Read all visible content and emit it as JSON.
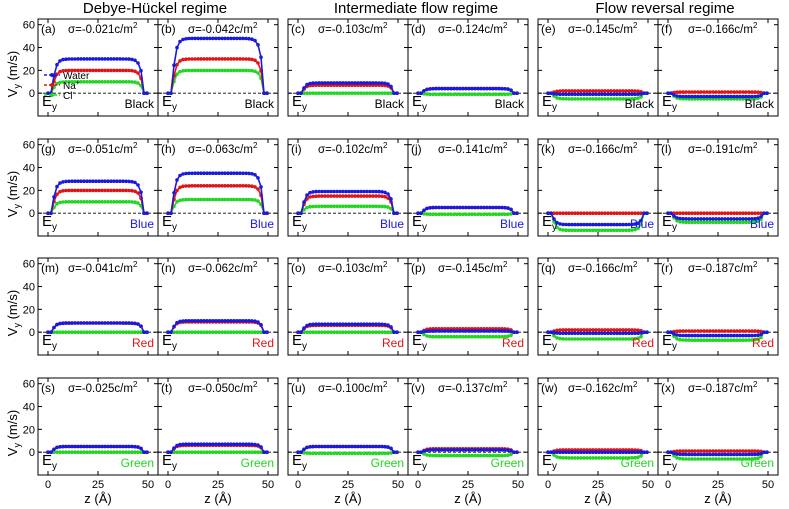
{
  "figure": {
    "regimes": [
      "Debye-Hückel regime",
      "Intermediate flow regime",
      "Flow reversal regime"
    ],
    "ylabel_main": "V",
    "ylabel_sub": "y",
    "ylabel_unit": " (m/s)",
    "xlabel_main": "z",
    "xlabel_unit": "(Å)",
    "field_main": "E",
    "field_sub": "y",
    "legend": [
      "Water",
      "Na",
      "Cl",
      "+",
      "-"
    ]
  },
  "chart_data": {
    "type": "line",
    "xlim": [
      -5,
      55
    ],
    "ylim": [
      -20,
      65
    ],
    "xticks": [
      0,
      25,
      50
    ],
    "yticks": [
      0,
      20,
      40,
      60
    ],
    "grid": false,
    "legend_position": "panel-a-lower-left",
    "series_colors": {
      "Water": "#1a1adc",
      "Na+": "#e01515",
      "Cl-": "#22d622"
    },
    "rows": [
      {
        "color_label": "Black",
        "color_hex": "#000000",
        "panels": [
          {
            "label": "(a)",
            "sigma": "σ=-0.021c/m²",
            "plateaus": {
              "water": 30,
              "na": 20,
              "cl": 10
            }
          },
          {
            "label": "(b)",
            "sigma": "σ=-0.042c/m²",
            "plateaus": {
              "water": 48,
              "na": 30,
              "cl": 20
            }
          },
          {
            "label": "(c)",
            "sigma": "σ=-0.103c/m²",
            "plateaus": {
              "water": 9,
              "na": 7,
              "cl": 0
            }
          },
          {
            "label": "(d)",
            "sigma": "σ=-0.124c/m²",
            "plateaus": {
              "water": 4,
              "na": 4,
              "cl": -1
            }
          },
          {
            "label": "(e)",
            "sigma": "σ=-0.145c/m²",
            "plateaus": {
              "water": -1,
              "na": 2,
              "cl": -5
            }
          },
          {
            "label": "(f)",
            "sigma": "σ=-0.166c/m²",
            "plateaus": {
              "water": -3,
              "na": 1,
              "cl": -5
            }
          }
        ]
      },
      {
        "color_label": "Blue",
        "color_hex": "#1a1adc",
        "panels": [
          {
            "label": "(g)",
            "sigma": "σ=-0.051c/m²",
            "plateaus": {
              "water": 28,
              "na": 20,
              "cl": 10
            }
          },
          {
            "label": "(h)",
            "sigma": "σ=-0.063c/m²",
            "plateaus": {
              "water": 35,
              "na": 24,
              "cl": 12
            }
          },
          {
            "label": "(i)",
            "sigma": "σ=-0.102c/m²",
            "plateaus": {
              "water": 19,
              "na": 15,
              "cl": 6
            }
          },
          {
            "label": "(j)",
            "sigma": "σ=-0.141c/m²",
            "plateaus": {
              "water": 5,
              "na": 5,
              "cl": -1
            }
          },
          {
            "label": "(k)",
            "sigma": "σ=-0.166c/m²",
            "plateaus": {
              "water": -10,
              "na": 0,
              "cl": -15
            }
          },
          {
            "label": "(l)",
            "sigma": "σ=-0.191c/m²",
            "plateaus": {
              "water": -5,
              "na": 0,
              "cl": -8
            }
          }
        ]
      },
      {
        "color_label": "Red",
        "color_hex": "#e01515",
        "panels": [
          {
            "label": "(m)",
            "sigma": "σ=-0.041c/m²",
            "plateaus": {
              "water": 8,
              "na": 8,
              "cl": 0
            }
          },
          {
            "label": "(n)",
            "sigma": "σ=-0.062c/m²",
            "plateaus": {
              "water": 10,
              "na": 9,
              "cl": 0
            }
          },
          {
            "label": "(o)",
            "sigma": "σ=-0.103c/m²",
            "plateaus": {
              "water": 7,
              "na": 6,
              "cl": 0
            }
          },
          {
            "label": "(p)",
            "sigma": "σ=-0.145c/m²",
            "plateaus": {
              "water": 1,
              "na": 3,
              "cl": -4
            }
          },
          {
            "label": "(q)",
            "sigma": "σ=-0.166c/m²",
            "plateaus": {
              "water": -1,
              "na": 2,
              "cl": -6
            }
          },
          {
            "label": "(r)",
            "sigma": "σ=-0.187c/m²",
            "plateaus": {
              "water": -3,
              "na": 1,
              "cl": -7
            }
          }
        ]
      },
      {
        "color_label": "Green",
        "color_hex": "#22d622",
        "panels": [
          {
            "label": "(s)",
            "sigma": "σ=-0.025c/m²",
            "plateaus": {
              "water": 5,
              "na": 5,
              "cl": 0
            }
          },
          {
            "label": "(t)",
            "sigma": "σ=-0.050c/m²",
            "plateaus": {
              "water": 7,
              "na": 6,
              "cl": 0
            }
          },
          {
            "label": "(u)",
            "sigma": "σ=-0.100c/m²",
            "plateaus": {
              "water": 5,
              "na": 5,
              "cl": -1
            }
          },
          {
            "label": "(v)",
            "sigma": "σ=-0.137c/m²",
            "plateaus": {
              "water": 2,
              "na": 3,
              "cl": -3
            }
          },
          {
            "label": "(w)",
            "sigma": "σ=-0.162c/m²",
            "plateaus": {
              "water": 0,
              "na": 2,
              "cl": -5
            }
          },
          {
            "label": "(x)",
            "sigma": "σ=-0.187c/m²",
            "plateaus": {
              "water": -2,
              "na": 1,
              "cl": -6
            }
          }
        ]
      }
    ]
  }
}
